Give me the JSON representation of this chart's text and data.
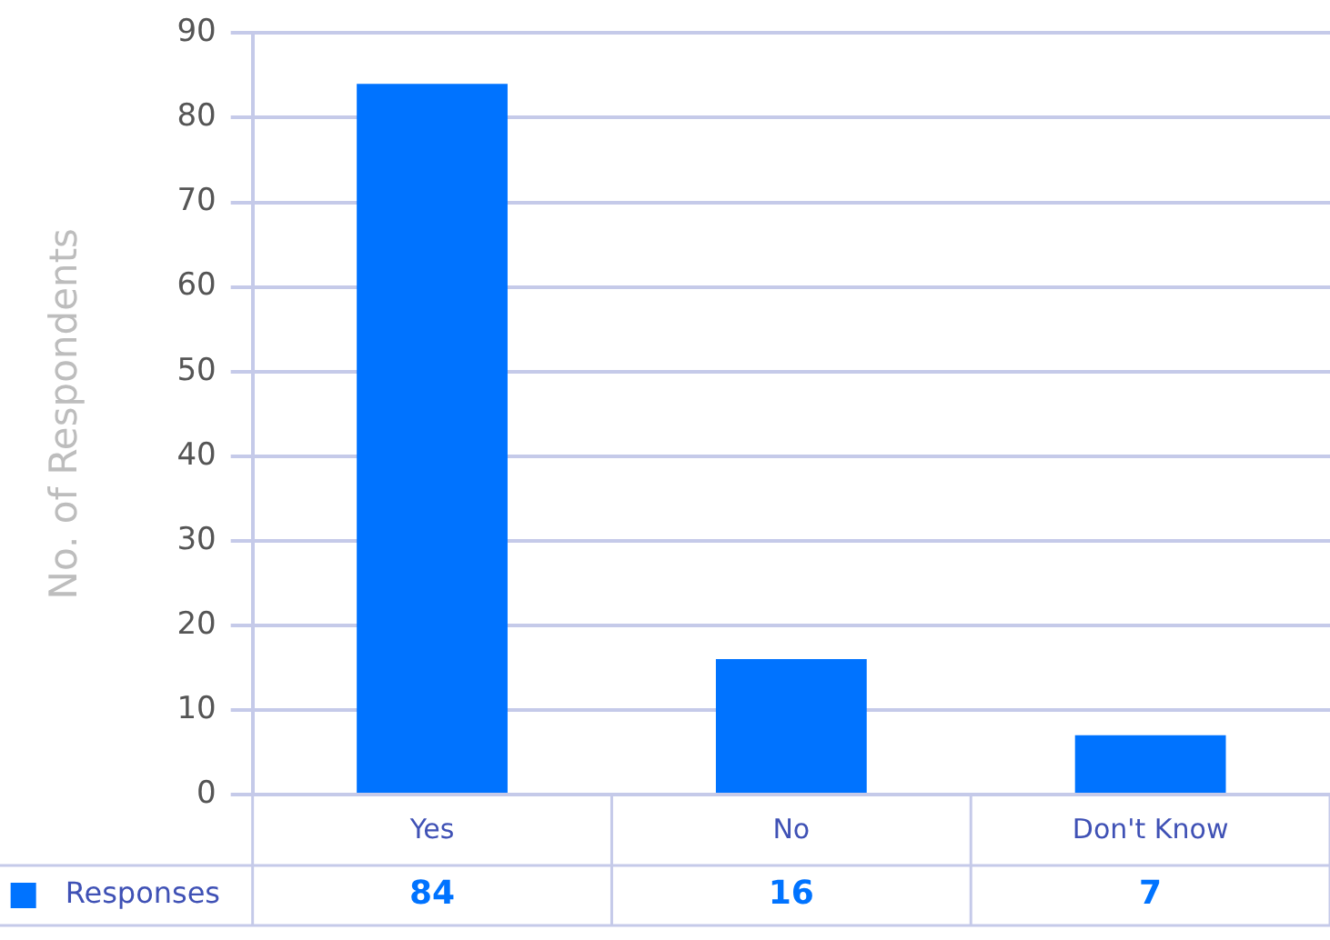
{
  "chart_data": {
    "type": "bar",
    "ylabel": "No. of Respondents",
    "categories": [
      "Yes",
      "No",
      "Don't Know"
    ],
    "series": [
      {
        "name": "Responses",
        "color": "#0073ff",
        "values": [
          84,
          16,
          7
        ]
      }
    ],
    "ylim": [
      0,
      90
    ],
    "yticks": [
      0,
      10,
      20,
      30,
      40,
      50,
      60,
      70,
      80,
      90
    ],
    "grid": "y",
    "legend": "bottom left",
    "data_labels": true
  }
}
